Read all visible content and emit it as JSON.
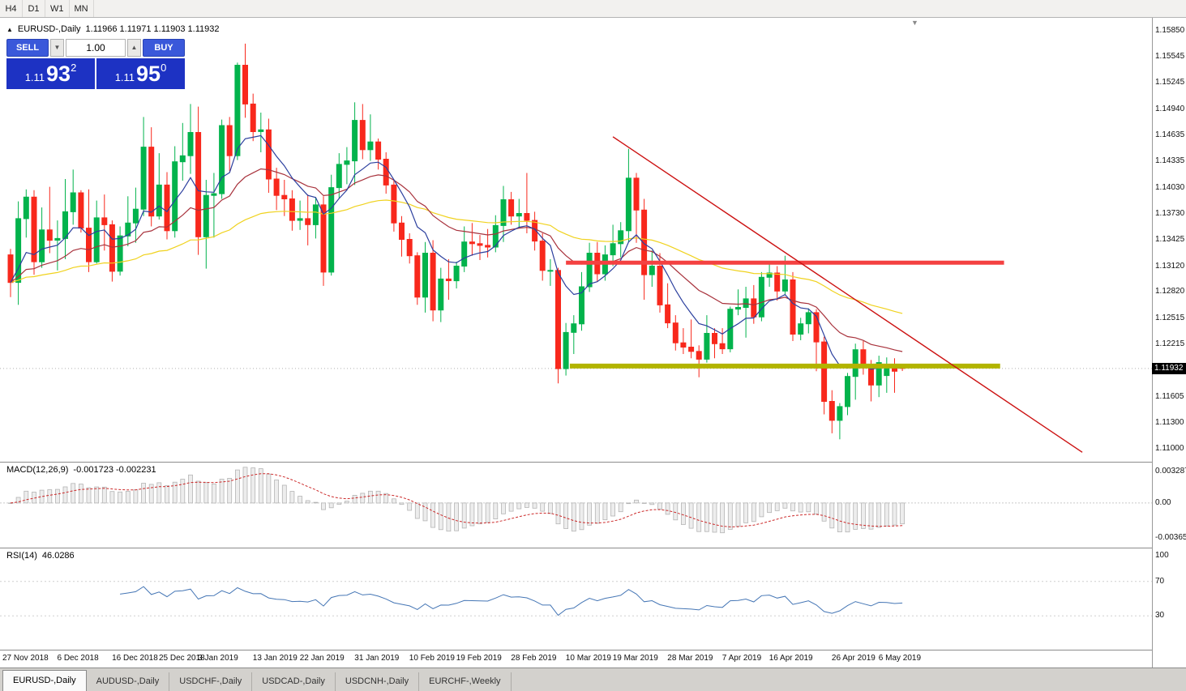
{
  "toolbar": {
    "timeframes": [
      "H4",
      "D1",
      "W1",
      "MN"
    ]
  },
  "icons": {
    "collapse_triangle": "▲",
    "chart_shift_marker": "▼",
    "spinner_down": "▼",
    "spinner_up": "▲"
  },
  "chart_header": {
    "title": "EURUSD-,Daily",
    "ohlc": "1.11966 1.11971 1.11903 1.11932"
  },
  "one_click_trading": {
    "sell_label": "SELL",
    "buy_label": "BUY",
    "volume": "1.00",
    "sell_price": {
      "prefix": "1.11",
      "pips": "93",
      "point": "2"
    },
    "buy_price": {
      "prefix": "1.11",
      "pips": "95",
      "point": "0"
    }
  },
  "price_axis_labels": [
    "1.15850",
    "1.15545",
    "1.15245",
    "1.14940",
    "1.14635",
    "1.14335",
    "1.14030",
    "1.13730",
    "1.13425",
    "1.13120",
    "1.12820",
    "1.12515",
    "1.12215",
    "1.11910",
    "1.11605",
    "1.11300",
    "1.11000"
  ],
  "current_price": "1.11932",
  "macd": {
    "label": "MACD(12,26,9)",
    "values": "-0.001723 -0.002231",
    "axis": [
      "0.003287",
      "0.00",
      "-0.003659"
    ]
  },
  "rsi": {
    "label": "RSI(14)",
    "value": "46.0286",
    "axis": [
      "100",
      "70",
      "30"
    ]
  },
  "date_axis": [
    "27 Nov 2018",
    "6 Dec 2018",
    "16 Dec 2018",
    "25 Dec 2018",
    "3 Jan 2019",
    "13 Jan 2019",
    "22 Jan 2019",
    "31 Jan 2019",
    "10 Feb 2019",
    "19 Feb 2019",
    "28 Feb 2019",
    "10 Mar 2019",
    "19 Mar 2019",
    "28 Mar 2019",
    "7 Apr 2019",
    "16 Apr 2019",
    "26 Apr 2019",
    "6 May 2019"
  ],
  "tabs": [
    {
      "label": "EURUSD-,Daily",
      "active": true
    },
    {
      "label": "AUDUSD-,Daily",
      "active": false
    },
    {
      "label": "USDCHF-,Daily",
      "active": false
    },
    {
      "label": "USDCAD-,Daily",
      "active": false
    },
    {
      "label": "USDCNH-,Daily",
      "active": false
    },
    {
      "label": "EURCHF-,Weekly",
      "active": false
    }
  ],
  "chart_data": {
    "type": "candlestick",
    "symbol": "EURUSD-",
    "timeframe": "Daily",
    "price_range": {
      "max": 1.16,
      "min": 1.1085
    },
    "ma_periods": [
      8,
      21,
      55
    ],
    "macd_params": [
      12,
      26,
      9
    ],
    "rsi_period": 14,
    "macd_range": {
      "max": 0.00434,
      "min": -0.00469
    },
    "tick_bars": [
      0,
      7,
      14,
      20,
      25,
      32,
      38,
      45,
      52,
      58,
      65,
      72,
      78,
      85,
      92,
      98,
      106,
      112
    ],
    "overlays": {
      "resistance_line": {
        "price": 1.1316,
        "from_bar": 71,
        "to_bar": 127
      },
      "support_line": {
        "price": 1.1196,
        "from_bar": 71.5,
        "to_bar": 126.5
      },
      "trendline": {
        "from": {
          "bar": 77,
          "price": 1.1462
        },
        "to": {
          "bar": 137,
          "price": 1.1096
        }
      }
    },
    "colors": {
      "bull": "#02b34c",
      "bear": "#f8281c",
      "ma_fast": "#2b3f9e",
      "ma_mid": "#a8323c",
      "ma_slow": "#f0d21e",
      "resistance": "#f44141",
      "support": "#b2b400",
      "trendline": "#cc1111",
      "rsi": "#4576b5",
      "macd_signal": "#cc2a2a",
      "hist_fill": "#ededed",
      "hist_stroke": "#b4b4b4",
      "current_price_line": "#b0b0b0"
    },
    "candles": [
      [
        1.1325,
        1.1332,
        1.1276,
        1.1293
      ],
      [
        1.1293,
        1.1387,
        1.1267,
        1.1367
      ],
      [
        1.1367,
        1.1401,
        1.1345,
        1.1392
      ],
      [
        1.1392,
        1.14,
        1.1302,
        1.1317
      ],
      [
        1.1317,
        1.138,
        1.131,
        1.1354
      ],
      [
        1.1354,
        1.1404,
        1.1327,
        1.1342
      ],
      [
        1.1342,
        1.1365,
        1.1307,
        1.1344
      ],
      [
        1.1344,
        1.1413,
        1.132,
        1.1375
      ],
      [
        1.1375,
        1.1424,
        1.136,
        1.1397
      ],
      [
        1.1397,
        1.14,
        1.1351,
        1.1356
      ],
      [
        1.1356,
        1.1401,
        1.1305,
        1.1317
      ],
      [
        1.1317,
        1.1388,
        1.1315,
        1.1368
      ],
      [
        1.1368,
        1.1395,
        1.133,
        1.136
      ],
      [
        1.136,
        1.1365,
        1.1294,
        1.1306
      ],
      [
        1.1306,
        1.1358,
        1.1301,
        1.1347
      ],
      [
        1.1347,
        1.1393,
        1.1335,
        1.1362
      ],
      [
        1.1362,
        1.1403,
        1.1339,
        1.1378
      ],
      [
        1.1378,
        1.1485,
        1.137,
        1.145
      ],
      [
        1.145,
        1.1473,
        1.1358,
        1.137
      ],
      [
        1.137,
        1.1443,
        1.1366,
        1.1406
      ],
      [
        1.1406,
        1.1421,
        1.1343,
        1.1353
      ],
      [
        1.1353,
        1.1451,
        1.1345,
        1.1433
      ],
      [
        1.1433,
        1.1478,
        1.1411,
        1.144
      ],
      [
        1.144,
        1.15,
        1.1419,
        1.1467
      ],
      [
        1.1467,
        1.1497,
        1.1325,
        1.1346
      ],
      [
        1.1346,
        1.1412,
        1.1309,
        1.1394
      ],
      [
        1.1394,
        1.142,
        1.1345,
        1.1396
      ],
      [
        1.1396,
        1.1482,
        1.139,
        1.1475
      ],
      [
        1.1475,
        1.1485,
        1.1422,
        1.144
      ],
      [
        1.144,
        1.1548,
        1.1435,
        1.1545
      ],
      [
        1.1545,
        1.157,
        1.1484,
        1.15
      ],
      [
        1.15,
        1.1512,
        1.1457,
        1.1468
      ],
      [
        1.1468,
        1.149,
        1.1444,
        1.147
      ],
      [
        1.147,
        1.1483,
        1.1397,
        1.1413
      ],
      [
        1.1413,
        1.1426,
        1.1377,
        1.1394
      ],
      [
        1.1394,
        1.1412,
        1.137,
        1.139
      ],
      [
        1.139,
        1.14,
        1.1353,
        1.1365
      ],
      [
        1.1365,
        1.1388,
        1.1354,
        1.1367
      ],
      [
        1.1367,
        1.1395,
        1.1336,
        1.136
      ],
      [
        1.136,
        1.1392,
        1.1344,
        1.1383
      ],
      [
        1.1383,
        1.1393,
        1.1289,
        1.1305
      ],
      [
        1.1305,
        1.1418,
        1.1301,
        1.1403
      ],
      [
        1.1403,
        1.1443,
        1.139,
        1.143
      ],
      [
        1.143,
        1.145,
        1.1407,
        1.1434
      ],
      [
        1.1434,
        1.1502,
        1.1406,
        1.1481
      ],
      [
        1.1481,
        1.15,
        1.1436,
        1.1447
      ],
      [
        1.1447,
        1.1488,
        1.1434,
        1.1456
      ],
      [
        1.1456,
        1.146,
        1.1424,
        1.1436
      ],
      [
        1.1436,
        1.1444,
        1.1396,
        1.1406
      ],
      [
        1.1406,
        1.1412,
        1.1352,
        1.1362
      ],
      [
        1.1362,
        1.137,
        1.1323,
        1.1343
      ],
      [
        1.1343,
        1.135,
        1.1315,
        1.1324
      ],
      [
        1.1324,
        1.1328,
        1.1267,
        1.1276
      ],
      [
        1.1276,
        1.134,
        1.1258,
        1.1327
      ],
      [
        1.1327,
        1.1342,
        1.1248,
        1.1261
      ],
      [
        1.1261,
        1.131,
        1.1247,
        1.1297
      ],
      [
        1.1297,
        1.132,
        1.1273,
        1.1295
      ],
      [
        1.1295,
        1.1317,
        1.1286,
        1.1312
      ],
      [
        1.1312,
        1.1358,
        1.1305,
        1.134
      ],
      [
        1.134,
        1.1362,
        1.1324,
        1.1338
      ],
      [
        1.1338,
        1.1348,
        1.1319,
        1.1336
      ],
      [
        1.1336,
        1.1355,
        1.1322,
        1.1334
      ],
      [
        1.1334,
        1.1371,
        1.1328,
        1.1359
      ],
      [
        1.1359,
        1.1405,
        1.134,
        1.1389
      ],
      [
        1.1389,
        1.1398,
        1.136,
        1.137
      ],
      [
        1.137,
        1.139,
        1.1356,
        1.1373
      ],
      [
        1.1373,
        1.142,
        1.135,
        1.1365
      ],
      [
        1.1365,
        1.1375,
        1.133,
        1.1341
      ],
      [
        1.1341,
        1.135,
        1.1295,
        1.1307
      ],
      [
        1.1307,
        1.132,
        1.1289,
        1.1307
      ],
      [
        1.1307,
        1.131,
        1.1176,
        1.1193
      ],
      [
        1.1193,
        1.1246,
        1.1185,
        1.1235
      ],
      [
        1.1235,
        1.1255,
        1.121,
        1.1245
      ],
      [
        1.1245,
        1.1305,
        1.1237,
        1.1288
      ],
      [
        1.1288,
        1.1339,
        1.1282,
        1.1327
      ],
      [
        1.1327,
        1.134,
        1.1294,
        1.1303
      ],
      [
        1.1303,
        1.1336,
        1.1295,
        1.1325
      ],
      [
        1.1325,
        1.136,
        1.1312,
        1.1338
      ],
      [
        1.1338,
        1.1363,
        1.1322,
        1.1353
      ],
      [
        1.1353,
        1.1448,
        1.134,
        1.1414
      ],
      [
        1.1414,
        1.142,
        1.1339,
        1.1377
      ],
      [
        1.1377,
        1.139,
        1.1273,
        1.1302
      ],
      [
        1.1302,
        1.133,
        1.1288,
        1.1312
      ],
      [
        1.1312,
        1.1327,
        1.1258,
        1.1267
      ],
      [
        1.1267,
        1.1292,
        1.124,
        1.1246
      ],
      [
        1.1246,
        1.1255,
        1.1214,
        1.1223
      ],
      [
        1.1223,
        1.124,
        1.121,
        1.1218
      ],
      [
        1.1218,
        1.125,
        1.1205,
        1.1213
      ],
      [
        1.1213,
        1.122,
        1.1183,
        1.1204
      ],
      [
        1.1204,
        1.1255,
        1.12,
        1.1234
      ],
      [
        1.1234,
        1.124,
        1.1205,
        1.1222
      ],
      [
        1.1222,
        1.124,
        1.121,
        1.1216
      ],
      [
        1.1216,
        1.1265,
        1.1212,
        1.1262
      ],
      [
        1.1262,
        1.1285,
        1.1255,
        1.1264
      ],
      [
        1.1264,
        1.1288,
        1.1229,
        1.1274
      ],
      [
        1.1274,
        1.129,
        1.1245,
        1.1253
      ],
      [
        1.1253,
        1.1305,
        1.1248,
        1.1299
      ],
      [
        1.1299,
        1.1315,
        1.1288,
        1.1304
      ],
      [
        1.1304,
        1.1312,
        1.1272,
        1.1283
      ],
      [
        1.1283,
        1.1324,
        1.1278,
        1.1296
      ],
      [
        1.1296,
        1.1305,
        1.1225,
        1.1233
      ],
      [
        1.1233,
        1.1252,
        1.1226,
        1.1245
      ],
      [
        1.1245,
        1.1263,
        1.1234,
        1.1258
      ],
      [
        1.1258,
        1.1262,
        1.119,
        1.1224
      ],
      [
        1.1224,
        1.123,
        1.114,
        1.1155
      ],
      [
        1.1155,
        1.1168,
        1.1118,
        1.1133
      ],
      [
        1.1133,
        1.1153,
        1.1111,
        1.1149
      ],
      [
        1.1149,
        1.1188,
        1.1139,
        1.1184
      ],
      [
        1.1184,
        1.1222,
        1.1157,
        1.1215
      ],
      [
        1.1215,
        1.1225,
        1.1186,
        1.1195
      ],
      [
        1.1195,
        1.1203,
        1.1155,
        1.1174
      ],
      [
        1.1174,
        1.1208,
        1.116,
        1.12
      ],
      [
        1.1185,
        1.1206,
        1.1165,
        1.1198
      ],
      [
        1.1198,
        1.1205,
        1.1165,
        1.119
      ],
      [
        1.11966,
        1.11971,
        1.11903,
        1.11932
      ]
    ]
  }
}
